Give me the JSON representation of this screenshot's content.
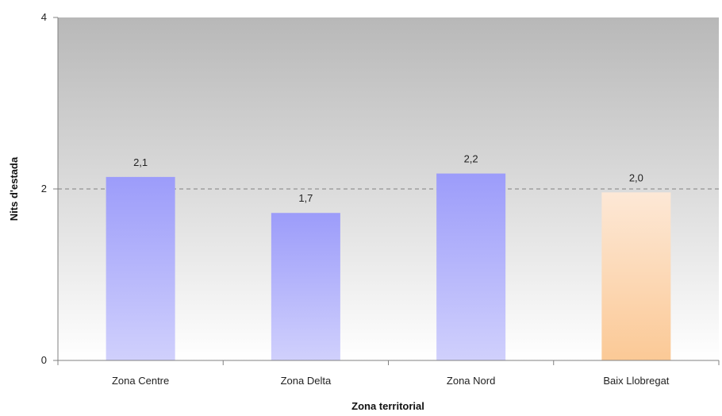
{
  "chart_data": {
    "type": "bar",
    "categories": [
      "Zona Centre",
      "Zona Delta",
      "Zona Nord",
      "Baix Llobregat"
    ],
    "values": [
      2.14,
      1.72,
      2.18,
      1.96
    ],
    "value_labels": [
      "2,1",
      "1,7",
      "2,2",
      "2,0"
    ],
    "xlabel": "Zona territorial",
    "ylabel": "Nits d'estada",
    "ylim": [
      0,
      4
    ],
    "yticks": [
      0,
      2,
      4
    ],
    "ytick_labels": [
      "0",
      "2",
      "4"
    ],
    "grid": "dashed horizontal line at 2",
    "colors": {
      "default_bar_top": "#9c9cfa",
      "default_bar_bottom": "#d0d0fc",
      "highlight_bar_top": "#fde8d6",
      "highlight_bar_bottom": "#fbc996",
      "plot_bg_top": "#b8b8b8",
      "plot_bg_bottom": "#ffffff"
    },
    "highlight_index": 3
  }
}
